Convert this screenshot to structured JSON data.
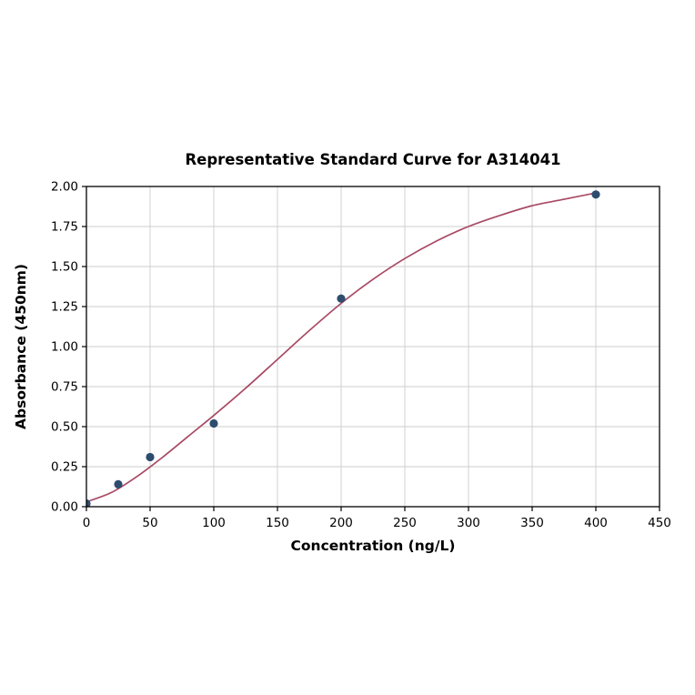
{
  "chart_data": {
    "type": "scatter",
    "title": "Representative Standard Curve for A314041",
    "xlabel": "Concentration (ng/L)",
    "ylabel": "Absorbance (450nm)",
    "xlim": [
      0,
      450
    ],
    "ylim": [
      0,
      2.0
    ],
    "grid": true,
    "legend": "none",
    "x_ticks": [
      0,
      50,
      100,
      150,
      200,
      250,
      300,
      350,
      400,
      450
    ],
    "y_ticks": [
      {
        "v": 0.0,
        "label": "0.00"
      },
      {
        "v": 0.25,
        "label": "0.25"
      },
      {
        "v": 0.5,
        "label": "0.50"
      },
      {
        "v": 0.75,
        "label": "0.75"
      },
      {
        "v": 1.0,
        "label": "1.00"
      },
      {
        "v": 1.25,
        "label": "1.25"
      },
      {
        "v": 1.5,
        "label": "1.50"
      },
      {
        "v": 1.75,
        "label": "1.75"
      },
      {
        "v": 2.0,
        "label": "2.00"
      }
    ],
    "points": {
      "x": [
        0,
        25,
        50,
        100,
        200,
        400
      ],
      "y": [
        0.02,
        0.14,
        0.31,
        0.52,
        1.3,
        1.95
      ]
    },
    "fit_curve": {
      "x": [
        0,
        20,
        40,
        60,
        80,
        100,
        125,
        150,
        175,
        200,
        225,
        250,
        275,
        300,
        325,
        350,
        375,
        400
      ],
      "y": [
        0.03,
        0.09,
        0.19,
        0.31,
        0.44,
        0.57,
        0.74,
        0.92,
        1.1,
        1.27,
        1.42,
        1.55,
        1.66,
        1.75,
        1.82,
        1.88,
        1.92,
        1.96
      ]
    },
    "colors": {
      "curve": "#a84a64",
      "points": "#2e4d6e",
      "grid": "#cccccc",
      "axis": "#000000",
      "background": "#ffffff"
    }
  }
}
